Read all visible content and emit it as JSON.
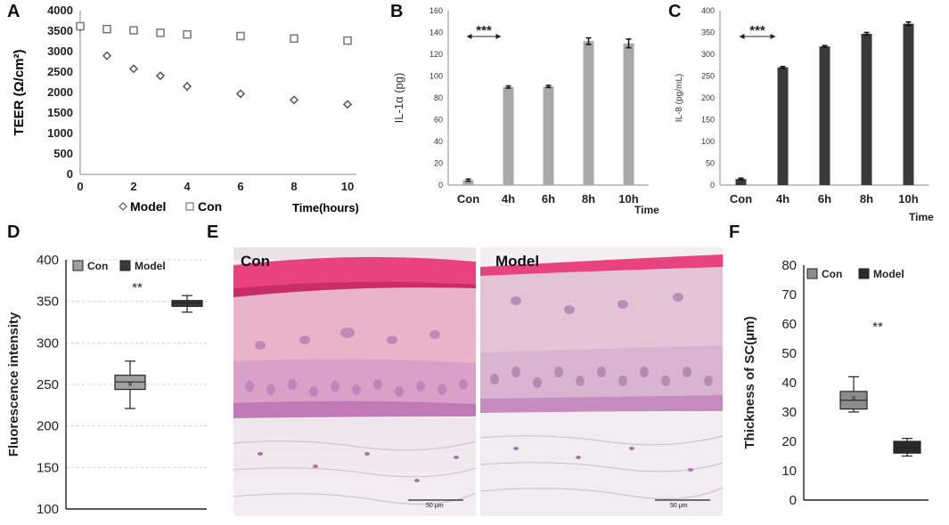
{
  "panels": {
    "a": "A",
    "b": "B",
    "c": "C",
    "d": "D",
    "e": "E",
    "f": "F"
  },
  "chart_data": [
    {
      "panel": "A",
      "type": "scatter",
      "ylabel": "TEER  (Ω/cm²)",
      "xlabel": "Time(hours)",
      "xlim": [
        0,
        10
      ],
      "ylim": [
        0,
        4000
      ],
      "xticks": [
        0,
        2,
        4,
        6,
        8,
        10
      ],
      "yticks": [
        0,
        500,
        1000,
        1500,
        2000,
        2500,
        3000,
        3500,
        4000
      ],
      "legend": [
        "Model",
        "Con"
      ],
      "series": [
        {
          "name": "Model",
          "marker": "diamond",
          "x": [
            0,
            1,
            2,
            3,
            4,
            6,
            8,
            10
          ],
          "y": [
            3600,
            2900,
            2580,
            2410,
            2150,
            1970,
            1820,
            1710
          ],
          "err": [
            60,
            40,
            50,
            40,
            120,
            60,
            40,
            40
          ]
        },
        {
          "name": "Con",
          "marker": "square",
          "x": [
            0,
            1,
            2,
            3,
            4,
            6,
            8,
            10
          ],
          "y": [
            3620,
            3550,
            3520,
            3460,
            3420,
            3380,
            3320,
            3270
          ],
          "err": [
            60,
            60,
            50,
            90,
            100,
            80,
            60,
            60
          ]
        }
      ]
    },
    {
      "panel": "B",
      "type": "bar",
      "ylabel": "IL-1α (pg)",
      "xlabel": "Time",
      "categories": [
        "Con",
        "4h",
        "6h",
        "8h",
        "10h"
      ],
      "values": [
        4.5,
        90,
        90.5,
        132,
        130
      ],
      "err": [
        1,
        1,
        1,
        3,
        4
      ],
      "ylim": [
        0,
        160
      ],
      "yticks": [
        0,
        20,
        40,
        60,
        80,
        100,
        120,
        140,
        160
      ],
      "color": "#a8a8a8",
      "annotation": "***"
    },
    {
      "panel": "C",
      "type": "bar",
      "ylabel": "IL-8 (pg/mL)",
      "xlabel": "Time",
      "categories": [
        "Con",
        "4h",
        "6h",
        "8h",
        "10h"
      ],
      "values": [
        14,
        270,
        318,
        347,
        370
      ],
      "err": [
        2,
        2,
        2,
        3,
        4
      ],
      "ylim": [
        0,
        400
      ],
      "yticks": [
        0,
        50,
        100,
        150,
        200,
        250,
        300,
        350,
        400
      ],
      "color": "#3a3a3a",
      "annotation": "***"
    },
    {
      "panel": "D",
      "type": "boxplot",
      "ylabel": "Fluorescence intensity",
      "ylim": [
        100,
        400
      ],
      "yticks": [
        100,
        150,
        200,
        250,
        300,
        350,
        400
      ],
      "legend": [
        "Con",
        "Model"
      ],
      "series": [
        {
          "name": "Con",
          "color": "#a0a0a0",
          "min": 221,
          "q1": 244,
          "median": 253,
          "q3": 261,
          "max": 278,
          "mean": 251
        },
        {
          "name": "Model",
          "color": "#3a3a3a",
          "min": 337,
          "q1": 344,
          "median": 348,
          "q3": 351,
          "max": 357,
          "mean": 347
        }
      ],
      "annotation": "**"
    },
    {
      "panel": "F",
      "type": "boxplot",
      "ylabel": "Thickness of SC(μm)",
      "ylim": [
        0,
        80
      ],
      "yticks": [
        0,
        10,
        20,
        30,
        40,
        50,
        60,
        70,
        80
      ],
      "legend": [
        "Con",
        "Model"
      ],
      "series": [
        {
          "name": "Con",
          "color": "#8c8c8c",
          "min": 30,
          "q1": 31,
          "median": 34,
          "q3": 37,
          "max": 42,
          "mean": 35
        },
        {
          "name": "Model",
          "color": "#2a2a2a",
          "min": 15,
          "q1": 16,
          "median": 18,
          "q3": 20,
          "max": 21,
          "mean": 18
        }
      ],
      "annotation": "**"
    }
  ],
  "histology": {
    "left_label": "Con",
    "right_label": "Model",
    "scale_left": "50 μm",
    "scale_right": "50 μm"
  }
}
